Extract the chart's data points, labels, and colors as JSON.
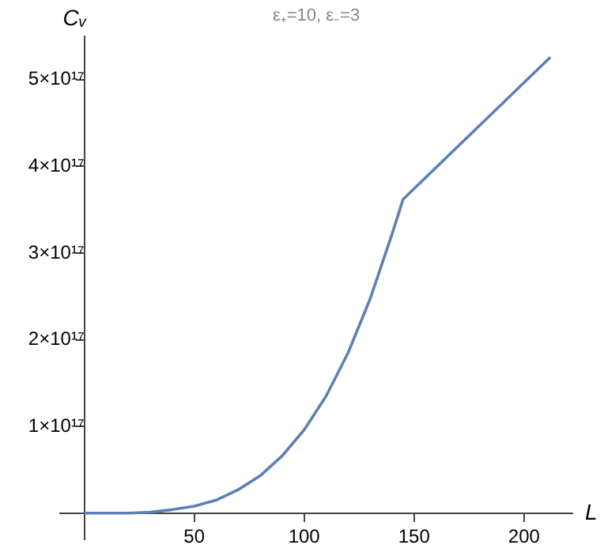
{
  "chart_data": {
    "type": "line",
    "title": "ε₊=10, ε₋=3",
    "xlabel": "L",
    "ylabel": "Cᵥ",
    "x": [
      0,
      10,
      20,
      30,
      40,
      50,
      60,
      70,
      80,
      90,
      100,
      110,
      120,
      130,
      140,
      145,
      212
    ],
    "series": [
      {
        "color": "#5e81b5",
        "values": [
          0,
          0,
          0,
          1000000000000000.0,
          4000000000000000.0,
          8000000000000000.0,
          1.5e+16,
          2.7e+16,
          4.3e+16,
          6.6e+16,
          9.6e+16,
          1.35e+17,
          1.85e+17,
          2.47e+17,
          3.22e+17,
          3.62e+17,
          5.26e+17
        ]
      }
    ],
    "xlim": [
      -11,
      222
    ],
    "ylim": [
      -3e+16,
      5.5e+17
    ],
    "xticks": [
      50,
      100,
      150,
      200
    ],
    "yticks": [
      {
        "value": 1e+17,
        "label": "1×10¹⁷"
      },
      {
        "value": 2e+17,
        "label": "2×10¹⁷"
      },
      {
        "value": 3e+17,
        "label": "3×10¹⁷"
      },
      {
        "value": 4e+17,
        "label": "4×10¹⁷"
      },
      {
        "value": 5e+17,
        "label": "5×10¹⁷"
      }
    ],
    "grid": false,
    "legend": false,
    "marker": "none",
    "line_style": "solid"
  }
}
